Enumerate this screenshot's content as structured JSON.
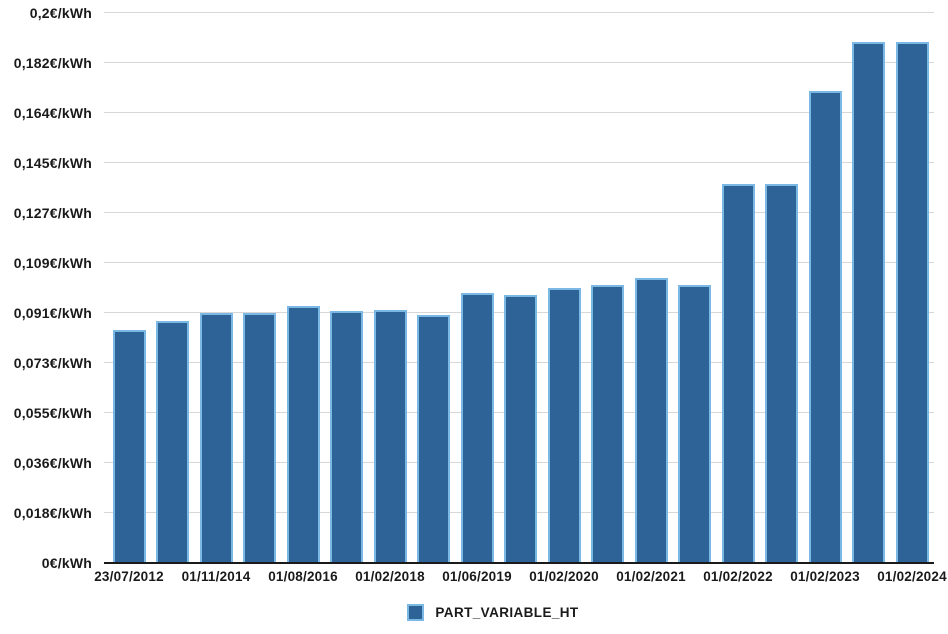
{
  "chart_data": {
    "type": "bar",
    "title": "",
    "unit": "€/kWh",
    "ylim": [
      0,
      0.2
    ],
    "grid": "horizontal",
    "legend": {
      "label": "PART_VARIABLE_HT",
      "position": "bottom"
    },
    "y_ticks": [
      {
        "label": "0€/kWh",
        "value": 0
      },
      {
        "label": "0,018€/kWh",
        "value": 0.01818
      },
      {
        "label": "0,036€/kWh",
        "value": 0.03636
      },
      {
        "label": "0,055€/kWh",
        "value": 0.05455
      },
      {
        "label": "0,073€/kWh",
        "value": 0.07273
      },
      {
        "label": "0,091€/kWh",
        "value": 0.09091
      },
      {
        "label": "0,109€/kWh",
        "value": 0.10909
      },
      {
        "label": "0,127€/kWh",
        "value": 0.12727
      },
      {
        "label": "0,145€/kWh",
        "value": 0.14545
      },
      {
        "label": "0,164€/kWh",
        "value": 0.16364
      },
      {
        "label": "0,182€/kWh",
        "value": 0.18182
      },
      {
        "label": "0,2€/kWh",
        "value": 0.2
      }
    ],
    "bars": [
      {
        "label": "23/07/2012",
        "value": 0.0847
      },
      {
        "label": "",
        "value": 0.0881
      },
      {
        "label": "01/11/2014",
        "value": 0.091
      },
      {
        "label": "",
        "value": 0.0909
      },
      {
        "label": "01/08/2016",
        "value": 0.0934
      },
      {
        "label": "",
        "value": 0.0917
      },
      {
        "label": "01/02/2018",
        "value": 0.0919
      },
      {
        "label": "",
        "value": 0.0901
      },
      {
        "label": "01/06/2019",
        "value": 0.0981
      },
      {
        "label": "",
        "value": 0.0973
      },
      {
        "label": "01/02/2020",
        "value": 0.1
      },
      {
        "label": "",
        "value": 0.1011
      },
      {
        "label": "01/02/2021",
        "value": 0.1037
      },
      {
        "label": "",
        "value": 0.1012
      },
      {
        "label": "01/02/2022",
        "value": 0.1378
      },
      {
        "label": "",
        "value": 0.1378
      },
      {
        "label": "01/02/2023",
        "value": 0.1715
      },
      {
        "label": "",
        "value": 0.1893
      },
      {
        "label": "01/02/2024",
        "value": 0.1893
      }
    ],
    "colors": {
      "bar_fill": "#2e6397",
      "bar_border": "#7cb8e4",
      "gridline": "#d7d7d7",
      "axis": "#1a1a1a",
      "text": "#1a1a1a"
    }
  }
}
